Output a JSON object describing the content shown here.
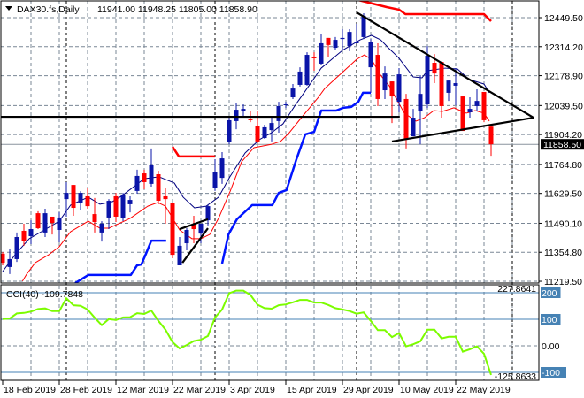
{
  "header": {
    "symbol_timeframe": "DAX30.fs,Daily",
    "ohlc": "11941.00 11948.25 11805.00 11858.90",
    "menu_icon": "triangle-down-icon"
  },
  "colors": {
    "bull": "#0a14a8",
    "bear": "#ff0000",
    "ma_fast": "#000080",
    "ma_slow": "#ff0000",
    "band_lower": "#0014ff",
    "band_upper": "#ff0000",
    "trendline": "#000000",
    "cci_line": "#7cfc00",
    "cci_level": "#4682b4",
    "grid": "#7a8796"
  },
  "chart_data": {
    "type": "candlestick",
    "title": "DAX30.fs,Daily",
    "price_axis": {
      "ticks": [
        "12449.50",
        "12314.20",
        "12178.90",
        "12039.50",
        "11904.20",
        "11764.80",
        "11629.50",
        "11490.10",
        "11354.80",
        "11219.50"
      ],
      "current_price": "11858.50"
    },
    "x_axis": {
      "labels": [
        {
          "bar": 1,
          "text": "18 Feb 2019"
        },
        {
          "bar": 9,
          "text": "28 Feb 2019"
        },
        {
          "bar": 17,
          "text": "12 Mar 2019"
        },
        {
          "bar": 25,
          "text": "22 Mar 2019"
        },
        {
          "bar": 33,
          "text": "3 Apr 2019"
        },
        {
          "bar": 41,
          "text": "15 Apr 2019"
        },
        {
          "bar": 49,
          "text": "29 Apr 2019"
        },
        {
          "bar": 57,
          "text": "10 May 2019"
        },
        {
          "bar": 65,
          "text": "22 May 2019"
        }
      ],
      "period_separators_bar": [
        10,
        31,
        51,
        73
      ]
    },
    "candles_ohlc": [
      [
        11348,
        11356,
        11294,
        11306
      ],
      [
        11286,
        11368,
        11253,
        11323
      ],
      [
        11323,
        11447,
        11310,
        11426
      ],
      [
        11455,
        11488,
        11385,
        11409
      ],
      [
        11430,
        11504,
        11393,
        11463
      ],
      [
        11537,
        11546,
        11463,
        11467
      ],
      [
        11447,
        11558,
        11426,
        11537
      ],
      [
        11521,
        11521,
        11438,
        11492
      ],
      [
        11459,
        11542,
        11401,
        11517
      ],
      [
        11603,
        11682,
        11521,
        11632
      ],
      [
        11669,
        11669,
        11525,
        11562
      ],
      [
        11583,
        11640,
        11550,
        11632
      ],
      [
        11616,
        11657,
        11558,
        11570
      ],
      [
        11533,
        11608,
        11447,
        11496
      ],
      [
        11447,
        11500,
        11405,
        11488
      ],
      [
        11517,
        11603,
        11463,
        11595
      ],
      [
        11616,
        11632,
        11496,
        11521
      ],
      [
        11513,
        11632,
        11500,
        11624
      ],
      [
        11579,
        11616,
        11541,
        11599
      ],
      [
        11641,
        11740,
        11628,
        11711
      ],
      [
        11723,
        11740,
        11649,
        11682
      ],
      [
        11674,
        11839,
        11661,
        11764
      ],
      [
        11719,
        11735,
        11579,
        11595
      ],
      [
        11616,
        11653,
        11488,
        11603
      ],
      [
        11583,
        11583,
        11327,
        11343
      ],
      [
        11294,
        11426,
        11294,
        11385
      ],
      [
        11397,
        11467,
        11364,
        11459
      ],
      [
        11488,
        11525,
        11397,
        11463
      ],
      [
        11442,
        11488,
        11397,
        11488
      ],
      [
        11504,
        11575,
        11480,
        11570
      ],
      [
        11653,
        11789,
        11641,
        11731
      ],
      [
        11702,
        11822,
        11674,
        11793
      ],
      [
        11868,
        11987,
        11859,
        11971
      ],
      [
        11967,
        12053,
        11929,
        12020
      ],
      [
        12016,
        12045,
        11987,
        12024
      ],
      [
        11979,
        12012,
        11962,
        11971
      ],
      [
        11946,
        12012,
        11863,
        11872
      ],
      [
        11888,
        11950,
        11884,
        11938
      ],
      [
        11925,
        11991,
        11872,
        11958
      ],
      [
        11967,
        12057,
        11913,
        12037
      ],
      [
        12041,
        12057,
        12028,
        12045
      ],
      [
        12078,
        12140,
        12070,
        12119
      ],
      [
        12136,
        12218,
        12128,
        12198
      ],
      [
        12136,
        12288,
        12132,
        12276
      ],
      [
        12264,
        12288,
        12202,
        12260
      ],
      [
        12235,
        12375,
        12231,
        12330
      ],
      [
        12355,
        12355,
        12264,
        12322
      ],
      [
        12309,
        12359,
        12301,
        12346
      ],
      [
        12350,
        12396,
        12301,
        12355
      ],
      [
        12317,
        12396,
        12293,
        12383
      ],
      [
        12330,
        12421,
        12330,
        12334
      ],
      [
        12359,
        12470,
        12350,
        12458
      ],
      [
        12218,
        12350,
        12099,
        12338
      ],
      [
        12276,
        12330,
        12037,
        12070
      ],
      [
        12111,
        12222,
        12070,
        12189
      ],
      [
        12152,
        12152,
        11958,
        12082
      ],
      [
        12057,
        12214,
        12008,
        12185
      ],
      [
        12070,
        12094,
        11839,
        11880
      ],
      [
        11896,
        12024,
        11896,
        11983
      ],
      [
        12012,
        12181,
        11859,
        12094
      ],
      [
        12045,
        12317,
        12028,
        12272
      ],
      [
        12239,
        12280,
        12144,
        12189
      ],
      [
        12243,
        12243,
        11983,
        12037
      ],
      [
        12099,
        12156,
        12061,
        12156
      ],
      [
        12132,
        12214,
        12041,
        12144
      ],
      [
        12082,
        12086,
        11921,
        11921
      ],
      [
        12008,
        12078,
        11983,
        12024
      ],
      [
        12037,
        12115,
        12016,
        12061
      ],
      [
        12103,
        12103,
        11962,
        11971
      ],
      [
        11941,
        11948.25,
        11805,
        11858.9
      ]
    ],
    "overlays": {
      "ma_fast": [
        [
          1,
          11265
        ],
        [
          2.75,
          11343
        ],
        [
          4.75,
          11418
        ],
        [
          6.9,
          11459
        ],
        [
          9,
          11500
        ],
        [
          10.6,
          11575
        ],
        [
          13.1,
          11612
        ],
        [
          14.75,
          11579
        ],
        [
          16.5,
          11591
        ],
        [
          17.75,
          11616
        ],
        [
          21,
          11698
        ],
        [
          23.1,
          11707
        ],
        [
          25.25,
          11678
        ],
        [
          26.5,
          11612
        ],
        [
          28.1,
          11562
        ],
        [
          29.75,
          11570
        ],
        [
          31.5,
          11612
        ],
        [
          33.1,
          11707
        ],
        [
          35.25,
          11818
        ],
        [
          37.25,
          11880
        ],
        [
          39,
          11913
        ],
        [
          40.6,
          11954
        ],
        [
          42.25,
          12037
        ],
        [
          44,
          12119
        ],
        [
          46,
          12214
        ],
        [
          49,
          12297
        ],
        [
          51.5,
          12346
        ],
        [
          53.1,
          12367
        ],
        [
          54.4,
          12346
        ],
        [
          55.6,
          12305
        ],
        [
          56.9,
          12264
        ],
        [
          59,
          12173
        ],
        [
          60.25,
          12169
        ],
        [
          61,
          12202
        ],
        [
          63.5,
          12214
        ],
        [
          65.25,
          12210
        ],
        [
          66.9,
          12161
        ],
        [
          69,
          12140
        ],
        [
          69.75,
          12099
        ]
      ],
      "ma_slow": [
        [
          3.8,
          11220
        ],
        [
          4.4,
          11253
        ],
        [
          5.6,
          11306
        ],
        [
          7.5,
          11343
        ],
        [
          9,
          11381
        ],
        [
          10.6,
          11451
        ],
        [
          13.1,
          11500
        ],
        [
          14.75,
          11467
        ],
        [
          16,
          11467
        ],
        [
          19,
          11513
        ],
        [
          21.5,
          11570
        ],
        [
          22.9,
          11587
        ],
        [
          24,
          11570
        ],
        [
          26,
          11459
        ],
        [
          27.75,
          11418
        ],
        [
          29,
          11418
        ],
        [
          30.25,
          11438
        ],
        [
          31.5,
          11513
        ],
        [
          33.1,
          11636
        ],
        [
          34.75,
          11777
        ],
        [
          36.5,
          11843
        ],
        [
          39,
          11859
        ],
        [
          40.25,
          11872
        ],
        [
          41.5,
          11913
        ],
        [
          43.5,
          11995
        ],
        [
          45.6,
          12078
        ],
        [
          46.5,
          12119
        ],
        [
          51,
          12255
        ],
        [
          52.1,
          12276
        ],
        [
          53.1,
          12255
        ],
        [
          54.4,
          12181
        ],
        [
          55.6,
          12132
        ],
        [
          56.5,
          12078
        ],
        [
          57.75,
          12004
        ],
        [
          59.4,
          11967
        ],
        [
          60.6,
          11983
        ],
        [
          61.9,
          12016
        ],
        [
          63.1,
          12012
        ],
        [
          64.75,
          12029
        ],
        [
          66.5,
          12004
        ],
        [
          67.75,
          12016
        ],
        [
          69,
          12004
        ],
        [
          69.75,
          11967
        ]
      ],
      "band_lower": [
        [
          [
            11.25,
            11211
          ],
          [
            13.1,
            11249
          ],
          [
            19.1,
            11249
          ],
          [
            20,
            11294
          ],
          [
            20.6,
            11298
          ],
          [
            21.25,
            11348
          ],
          [
            22,
            11409
          ],
          [
            24.1,
            11409
          ]
        ],
        [
          [
            32,
            11302
          ],
          [
            32.9,
            11438
          ],
          [
            34.1,
            11509
          ],
          [
            36.25,
            11575
          ],
          [
            39.1,
            11575
          ],
          [
            40,
            11632
          ],
          [
            41.1,
            11645
          ],
          [
            42.5,
            11789
          ],
          [
            43.75,
            11905
          ],
          [
            45,
            11917
          ],
          [
            46,
            12016
          ],
          [
            48.1,
            12016
          ],
          [
            49.1,
            12029
          ],
          [
            50.25,
            12033
          ],
          [
            51.25,
            12057
          ],
          [
            51.9,
            12099
          ],
          [
            53,
            12099
          ]
        ]
      ],
      "band_upper": [
        [
          [
            25,
            11847
          ],
          [
            25.9,
            11802
          ],
          [
            31,
            11802
          ]
        ],
        [
          [
            51.25,
            12532
          ],
          [
            55.25,
            12499
          ],
          [
            57,
            12487
          ],
          [
            57.9,
            12466
          ],
          [
            69,
            12466
          ],
          [
            70,
            12433
          ]
        ]
      ],
      "trendlines": [
        [
          [
            51,
            12474
          ],
          [
            76,
            11983
          ]
        ],
        [
          [
            56,
            11872
          ],
          [
            76,
            11983
          ]
        ],
        [
          [
            0.6,
            11987
          ],
          [
            57.1,
            11987
          ]
        ],
        [
          [
            26,
            11463
          ],
          [
            30,
            11509
          ]
        ],
        [
          [
            26.4,
            11306
          ],
          [
            30,
            11467
          ]
        ]
      ]
    },
    "cci": {
      "title": "CCI(40) -109.7848",
      "period": 40,
      "max_label": "227.8641",
      "min_label": "-125.8633",
      "zero_label": "0.00",
      "levels": [
        {
          "value": 200,
          "label": "200"
        },
        {
          "value": 100,
          "label": "100"
        },
        {
          "value": -100,
          "label": "-100"
        }
      ],
      "values": [
        101,
        103,
        122,
        124,
        129,
        139,
        141,
        131,
        131,
        179,
        153,
        151,
        137,
        106,
        78,
        101,
        97,
        107,
        108,
        123,
        120,
        133,
        94,
        61,
        14,
        -10,
        3,
        18,
        23,
        37,
        107,
        137,
        198,
        208,
        208,
        192,
        155,
        142,
        140,
        153,
        156,
        164,
        173,
        173,
        163,
        163,
        154,
        142,
        137,
        131,
        121,
        126,
        94,
        59,
        59,
        33,
        48,
        -2,
        6,
        17,
        61,
        61,
        28,
        34,
        34,
        -22,
        -13,
        -2,
        -30,
        -109.78
      ]
    }
  }
}
